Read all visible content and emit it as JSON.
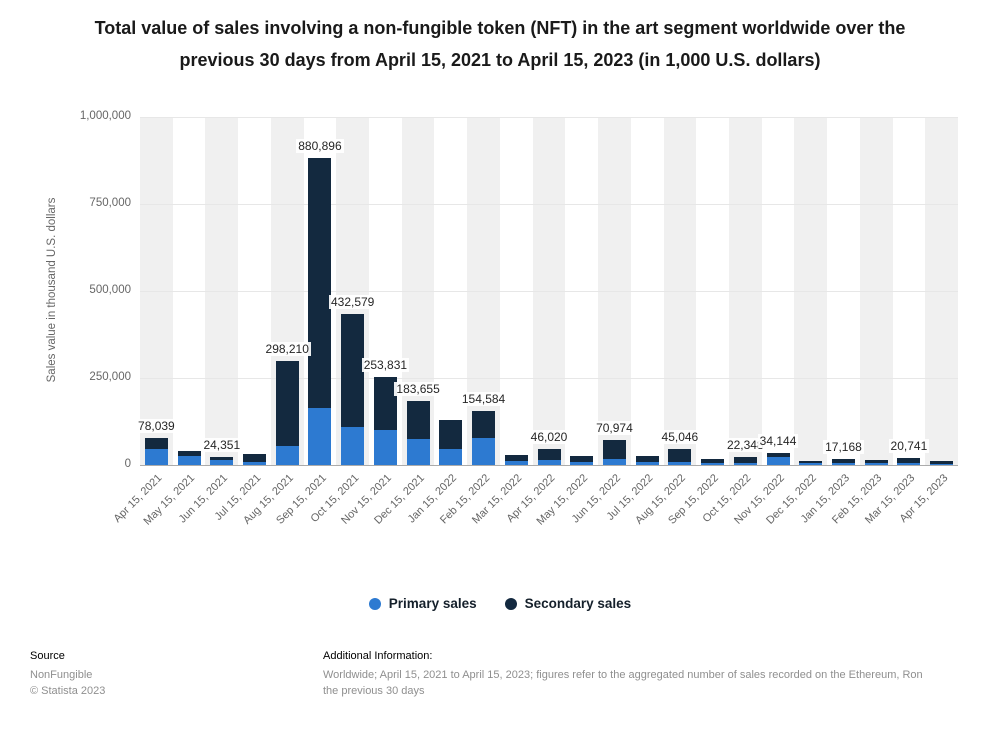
{
  "chart_data": {
    "type": "bar",
    "stacked": true,
    "title": "Total value of sales involving a non-fungible token (NFT) in the art segment worldwide over the previous 30 days from April 15, 2021 to April 15, 2023 (in 1,000 U.S. dollars)",
    "xlabel": "",
    "ylabel": "Sales value in thousand U.S. dollars",
    "ylim": [
      0,
      1000000
    ],
    "yticks": [
      0,
      250000,
      500000,
      750000,
      1000000
    ],
    "ytick_labels": [
      "0",
      "250,000",
      "500,000",
      "750,000",
      "1,000,000"
    ],
    "grid": true,
    "legend_position": "bottom",
    "categories": [
      "Apr 15, 2021",
      "May 15, 2021",
      "Jun 15, 2021",
      "Jul 15, 2021",
      "Aug 15, 2021",
      "Sep 15, 2021",
      "Oct 15, 2021",
      "Nov 15, 2021",
      "Dec 15, 2021",
      "Jan 15, 2022",
      "Feb 15, 2022",
      "Mar 15, 2022",
      "Apr 15, 2022",
      "May 15, 2022",
      "Jun 15, 2022",
      "Jul 15, 2022",
      "Aug 15, 2022",
      "Sep 15, 2022",
      "Oct 15, 2022",
      "Nov 15, 2022",
      "Dec 15, 2022",
      "Jan 15, 2023",
      "Feb 15, 2023",
      "Mar 15, 2023",
      "Apr 15, 2023"
    ],
    "series": [
      {
        "name": "Primary sales",
        "color": "#2d7ad1",
        "values": [
          45000,
          26000,
          13000,
          10000,
          55000,
          165000,
          110000,
          100000,
          75000,
          45000,
          78000,
          12000,
          15000,
          10000,
          18000,
          8000,
          10000,
          6000,
          7000,
          24000,
          5000,
          6000,
          5000,
          7000,
          4000
        ]
      },
      {
        "name": "Secondary sales",
        "color": "#13293f",
        "values": [
          33039,
          14000,
          11351,
          23000,
          243210,
          715896,
          322579,
          153831,
          108655,
          85000,
          76584,
          18000,
          31020,
          15000,
          52974,
          17000,
          35046,
          12000,
          15348,
          10144,
          7000,
          11168,
          8000,
          13741,
          7000
        ]
      }
    ],
    "total_labels": [
      "78,039",
      null,
      "24,351",
      null,
      "298,210",
      "880,896",
      "432,579",
      "253,831",
      "183,655",
      null,
      "154,584",
      null,
      "46,020",
      null,
      "70,974",
      null,
      "45,046",
      null,
      "22,348",
      "34,144",
      null,
      "17,168",
      null,
      "20,741",
      null
    ]
  },
  "footer": {
    "source_label": "Source",
    "source_name": "NonFungible",
    "copyright": "© Statista 2023",
    "additional_info_label": "Additional Information:",
    "additional_info_line1": "Worldwide; April 15, 2021 to April 15, 2023; figures refer to the aggregated number of sales recorded on the Ethereum, Ron",
    "additional_info_line2": "the previous 30 days"
  }
}
